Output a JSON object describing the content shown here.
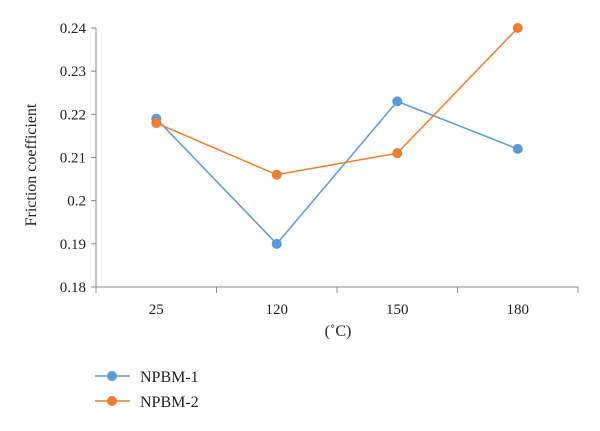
{
  "chart_data": {
    "type": "line",
    "categories": [
      "25",
      "120",
      "150",
      "180"
    ],
    "series": [
      {
        "name": "NPBM-1",
        "values": [
          0.219,
          0.19,
          0.223,
          0.212
        ],
        "color": "#5b9bd5"
      },
      {
        "name": "NPBM-2",
        "values": [
          0.218,
          0.206,
          0.211,
          0.24
        ],
        "color": "#ed7d31"
      }
    ],
    "title": "",
    "xlabel": "(˚C)",
    "ylabel": "Friction coefficient",
    "ylim": [
      0.18,
      0.24
    ],
    "yticks": [
      "0.18",
      "0.19",
      "0.2",
      "0.21",
      "0.22",
      "0.23",
      "0.24"
    ],
    "grid": false,
    "legend_position": "bottom-left"
  }
}
